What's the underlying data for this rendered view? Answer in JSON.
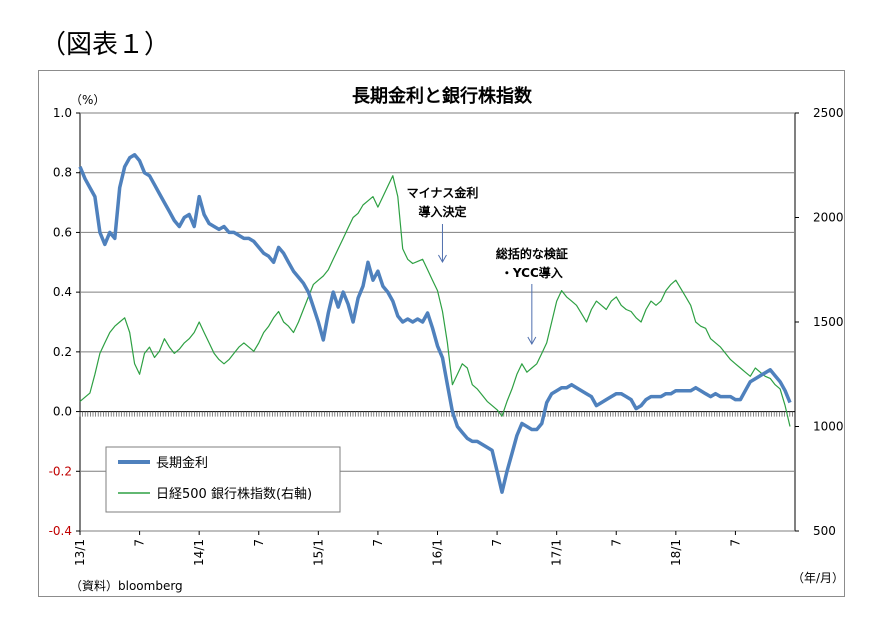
{
  "figure_label": "（図表１）",
  "colors": {
    "jgb": "#4f81bd",
    "bank": "#2ea043",
    "grid": "#7f7f7f",
    "negative": "#c00000"
  },
  "chart_data": {
    "type": "line",
    "title": "長期金利と銀行株指数",
    "y_left_unit": "（%）",
    "x_unit": "（年/月）",
    "source": "（資料）bloomberg",
    "ylim_left": [
      -0.4,
      1.0
    ],
    "ylim_right": [
      500,
      2500
    ],
    "left_ticks": [
      "1.0",
      "0.8",
      "0.6",
      "0.4",
      "0.2",
      "0.0",
      "-0.2",
      "-0.4"
    ],
    "right_ticks": [
      "2500",
      "2000",
      "1500",
      "1000",
      "500"
    ],
    "x_ticks": [
      {
        "label": "13/1",
        "t": 0
      },
      {
        "label": "7",
        "t": 6
      },
      {
        "label": "14/1",
        "t": 12
      },
      {
        "label": "7",
        "t": 18
      },
      {
        "label": "15/1",
        "t": 24
      },
      {
        "label": "7",
        "t": 30
      },
      {
        "label": "16/1",
        "t": 36
      },
      {
        "label": "7",
        "t": 42
      },
      {
        "label": "17/1",
        "t": 48
      },
      {
        "label": "7",
        "t": 54
      },
      {
        "label": "18/1",
        "t": 60
      },
      {
        "label": "7",
        "t": 66
      }
    ],
    "xlim": [
      0,
      72
    ],
    "grid": true,
    "legend_position": "bottom-left",
    "annotations": [
      {
        "lines": [
          "マイナス金利",
          "導入決定"
        ],
        "t": 36.5
      },
      {
        "lines": [
          "総括的な検証",
          "・YCC導入"
        ],
        "t": 45.5
      }
    ],
    "series": [
      {
        "name": "長期金利",
        "axis": "left",
        "points": [
          [
            0,
            0.82
          ],
          [
            0.5,
            0.78
          ],
          [
            1,
            0.75
          ],
          [
            1.5,
            0.72
          ],
          [
            2,
            0.6
          ],
          [
            2.5,
            0.56
          ],
          [
            3,
            0.6
          ],
          [
            3.5,
            0.58
          ],
          [
            4,
            0.75
          ],
          [
            4.5,
            0.82
          ],
          [
            5,
            0.85
          ],
          [
            5.5,
            0.86
          ],
          [
            6,
            0.84
          ],
          [
            6.5,
            0.8
          ],
          [
            7,
            0.79
          ],
          [
            7.5,
            0.76
          ],
          [
            8,
            0.73
          ],
          [
            8.5,
            0.7
          ],
          [
            9,
            0.67
          ],
          [
            9.5,
            0.64
          ],
          [
            10,
            0.62
          ],
          [
            10.5,
            0.65
          ],
          [
            11,
            0.66
          ],
          [
            11.5,
            0.62
          ],
          [
            12,
            0.72
          ],
          [
            12.5,
            0.66
          ],
          [
            13,
            0.63
          ],
          [
            13.5,
            0.62
          ],
          [
            14,
            0.61
          ],
          [
            14.5,
            0.62
          ],
          [
            15,
            0.6
          ],
          [
            15.5,
            0.6
          ],
          [
            16,
            0.59
          ],
          [
            16.5,
            0.58
          ],
          [
            17,
            0.58
          ],
          [
            17.5,
            0.57
          ],
          [
            18,
            0.55
          ],
          [
            18.5,
            0.53
          ],
          [
            19,
            0.52
          ],
          [
            19.5,
            0.5
          ],
          [
            20,
            0.55
          ],
          [
            20.5,
            0.53
          ],
          [
            21,
            0.5
          ],
          [
            21.5,
            0.47
          ],
          [
            22,
            0.45
          ],
          [
            22.5,
            0.43
          ],
          [
            23,
            0.4
          ],
          [
            23.5,
            0.35
          ],
          [
            24,
            0.3
          ],
          [
            24.5,
            0.24
          ],
          [
            25,
            0.33
          ],
          [
            25.5,
            0.4
          ],
          [
            26,
            0.35
          ],
          [
            26.5,
            0.4
          ],
          [
            27,
            0.36
          ],
          [
            27.5,
            0.3
          ],
          [
            28,
            0.38
          ],
          [
            28.5,
            0.42
          ],
          [
            29,
            0.5
          ],
          [
            29.5,
            0.44
          ],
          [
            30,
            0.47
          ],
          [
            30.5,
            0.42
          ],
          [
            31,
            0.4
          ],
          [
            31.5,
            0.37
          ],
          [
            32,
            0.32
          ],
          [
            32.5,
            0.3
          ],
          [
            33,
            0.31
          ],
          [
            33.5,
            0.3
          ],
          [
            34,
            0.31
          ],
          [
            34.5,
            0.3
          ],
          [
            35,
            0.33
          ],
          [
            35.5,
            0.28
          ],
          [
            36,
            0.22
          ],
          [
            36.5,
            0.18
          ],
          [
            37,
            0.09
          ],
          [
            37.5,
            0.0
          ],
          [
            38,
            -0.05
          ],
          [
            38.5,
            -0.07
          ],
          [
            39,
            -0.09
          ],
          [
            39.5,
            -0.1
          ],
          [
            40,
            -0.1
          ],
          [
            40.5,
            -0.11
          ],
          [
            41,
            -0.12
          ],
          [
            41.5,
            -0.13
          ],
          [
            42,
            -0.2
          ],
          [
            42.5,
            -0.27
          ],
          [
            43,
            -0.2
          ],
          [
            43.5,
            -0.14
          ],
          [
            44,
            -0.08
          ],
          [
            44.5,
            -0.04
          ],
          [
            45,
            -0.05
          ],
          [
            45.5,
            -0.06
          ],
          [
            46,
            -0.06
          ],
          [
            46.5,
            -0.04
          ],
          [
            47,
            0.03
          ],
          [
            47.5,
            0.06
          ],
          [
            48,
            0.07
          ],
          [
            48.5,
            0.08
          ],
          [
            49,
            0.08
          ],
          [
            49.5,
            0.09
          ],
          [
            50,
            0.08
          ],
          [
            50.5,
            0.07
          ],
          [
            51,
            0.06
          ],
          [
            51.5,
            0.05
          ],
          [
            52,
            0.02
          ],
          [
            52.5,
            0.03
          ],
          [
            53,
            0.04
          ],
          [
            53.5,
            0.05
          ],
          [
            54,
            0.06
          ],
          [
            54.5,
            0.06
          ],
          [
            55,
            0.05
          ],
          [
            55.5,
            0.04
          ],
          [
            56,
            0.01
          ],
          [
            56.5,
            0.02
          ],
          [
            57,
            0.04
          ],
          [
            57.5,
            0.05
          ],
          [
            58,
            0.05
          ],
          [
            58.5,
            0.05
          ],
          [
            59,
            0.06
          ],
          [
            59.5,
            0.06
          ],
          [
            60,
            0.07
          ],
          [
            60.5,
            0.07
          ],
          [
            61,
            0.07
          ],
          [
            61.5,
            0.07
          ],
          [
            62,
            0.08
          ],
          [
            62.5,
            0.07
          ],
          [
            63,
            0.06
          ],
          [
            63.5,
            0.05
          ],
          [
            64,
            0.06
          ],
          [
            64.5,
            0.05
          ],
          [
            65,
            0.05
          ],
          [
            65.5,
            0.05
          ],
          [
            66,
            0.04
          ],
          [
            66.5,
            0.04
          ],
          [
            67,
            0.07
          ],
          [
            67.5,
            0.1
          ],
          [
            68,
            0.11
          ],
          [
            68.5,
            0.12
          ],
          [
            69,
            0.13
          ],
          [
            69.5,
            0.14
          ],
          [
            70,
            0.12
          ],
          [
            70.5,
            0.1
          ],
          [
            71,
            0.07
          ],
          [
            71.5,
            0.03
          ]
        ]
      },
      {
        "name": "日経500 銀行株指数(右軸)",
        "axis": "right",
        "points": [
          [
            0,
            1120
          ],
          [
            0.5,
            1140
          ],
          [
            1,
            1160
          ],
          [
            1.5,
            1250
          ],
          [
            2,
            1350
          ],
          [
            2.5,
            1400
          ],
          [
            3,
            1450
          ],
          [
            3.5,
            1480
          ],
          [
            4,
            1500
          ],
          [
            4.5,
            1520
          ],
          [
            5,
            1450
          ],
          [
            5.5,
            1300
          ],
          [
            6,
            1250
          ],
          [
            6.5,
            1350
          ],
          [
            7,
            1380
          ],
          [
            7.5,
            1330
          ],
          [
            8,
            1360
          ],
          [
            8.5,
            1420
          ],
          [
            9,
            1380
          ],
          [
            9.5,
            1350
          ],
          [
            10,
            1370
          ],
          [
            10.5,
            1400
          ],
          [
            11,
            1420
          ],
          [
            11.5,
            1450
          ],
          [
            12,
            1500
          ],
          [
            12.5,
            1450
          ],
          [
            13,
            1400
          ],
          [
            13.5,
            1350
          ],
          [
            14,
            1320
          ],
          [
            14.5,
            1300
          ],
          [
            15,
            1320
          ],
          [
            15.5,
            1350
          ],
          [
            16,
            1380
          ],
          [
            16.5,
            1400
          ],
          [
            17,
            1380
          ],
          [
            17.5,
            1360
          ],
          [
            18,
            1400
          ],
          [
            18.5,
            1450
          ],
          [
            19,
            1480
          ],
          [
            19.5,
            1520
          ],
          [
            20,
            1550
          ],
          [
            20.5,
            1500
          ],
          [
            21,
            1480
          ],
          [
            21.5,
            1450
          ],
          [
            22,
            1500
          ],
          [
            22.5,
            1560
          ],
          [
            23,
            1620
          ],
          [
            23.5,
            1680
          ],
          [
            24,
            1700
          ],
          [
            24.5,
            1720
          ],
          [
            25,
            1750
          ],
          [
            25.5,
            1800
          ],
          [
            26,
            1850
          ],
          [
            26.5,
            1900
          ],
          [
            27,
            1950
          ],
          [
            27.5,
            2000
          ],
          [
            28,
            2020
          ],
          [
            28.5,
            2060
          ],
          [
            29,
            2080
          ],
          [
            29.5,
            2100
          ],
          [
            30,
            2050
          ],
          [
            30.5,
            2100
          ],
          [
            31,
            2150
          ],
          [
            31.5,
            2200
          ],
          [
            32,
            2100
          ],
          [
            32.5,
            1850
          ],
          [
            33,
            1800
          ],
          [
            33.5,
            1780
          ],
          [
            34,
            1790
          ],
          [
            34.5,
            1800
          ],
          [
            35,
            1750
          ],
          [
            35.5,
            1700
          ],
          [
            36,
            1650
          ],
          [
            36.5,
            1550
          ],
          [
            37,
            1400
          ],
          [
            37.5,
            1200
          ],
          [
            38,
            1250
          ],
          [
            38.5,
            1300
          ],
          [
            39,
            1280
          ],
          [
            39.5,
            1200
          ],
          [
            40,
            1180
          ],
          [
            40.5,
            1150
          ],
          [
            41,
            1120
          ],
          [
            41.5,
            1100
          ],
          [
            42,
            1080
          ],
          [
            42.5,
            1050
          ],
          [
            43,
            1120
          ],
          [
            43.5,
            1180
          ],
          [
            44,
            1250
          ],
          [
            44.5,
            1300
          ],
          [
            45,
            1260
          ],
          [
            45.5,
            1280
          ],
          [
            46,
            1300
          ],
          [
            46.5,
            1350
          ],
          [
            47,
            1400
          ],
          [
            47.5,
            1500
          ],
          [
            48,
            1600
          ],
          [
            48.5,
            1650
          ],
          [
            49,
            1620
          ],
          [
            49.5,
            1600
          ],
          [
            50,
            1580
          ],
          [
            50.5,
            1540
          ],
          [
            51,
            1500
          ],
          [
            51.5,
            1560
          ],
          [
            52,
            1600
          ],
          [
            52.5,
            1580
          ],
          [
            53,
            1560
          ],
          [
            53.5,
            1600
          ],
          [
            54,
            1620
          ],
          [
            54.5,
            1580
          ],
          [
            55,
            1560
          ],
          [
            55.5,
            1550
          ],
          [
            56,
            1520
          ],
          [
            56.5,
            1500
          ],
          [
            57,
            1560
          ],
          [
            57.5,
            1600
          ],
          [
            58,
            1580
          ],
          [
            58.5,
            1600
          ],
          [
            59,
            1650
          ],
          [
            59.5,
            1680
          ],
          [
            60,
            1700
          ],
          [
            60.5,
            1660
          ],
          [
            61,
            1620
          ],
          [
            61.5,
            1580
          ],
          [
            62,
            1500
          ],
          [
            62.5,
            1480
          ],
          [
            63,
            1470
          ],
          [
            63.5,
            1420
          ],
          [
            64,
            1400
          ],
          [
            64.5,
            1380
          ],
          [
            65,
            1350
          ],
          [
            65.5,
            1320
          ],
          [
            66,
            1300
          ],
          [
            66.5,
            1280
          ],
          [
            67,
            1260
          ],
          [
            67.5,
            1240
          ],
          [
            68,
            1280
          ],
          [
            68.5,
            1260
          ],
          [
            69,
            1240
          ],
          [
            69.5,
            1230
          ],
          [
            70,
            1200
          ],
          [
            70.5,
            1180
          ],
          [
            71,
            1100
          ],
          [
            71.5,
            1000
          ]
        ]
      }
    ]
  },
  "legend": {
    "items": [
      "長期金利",
      "日経500 銀行株指数(右軸)"
    ]
  }
}
